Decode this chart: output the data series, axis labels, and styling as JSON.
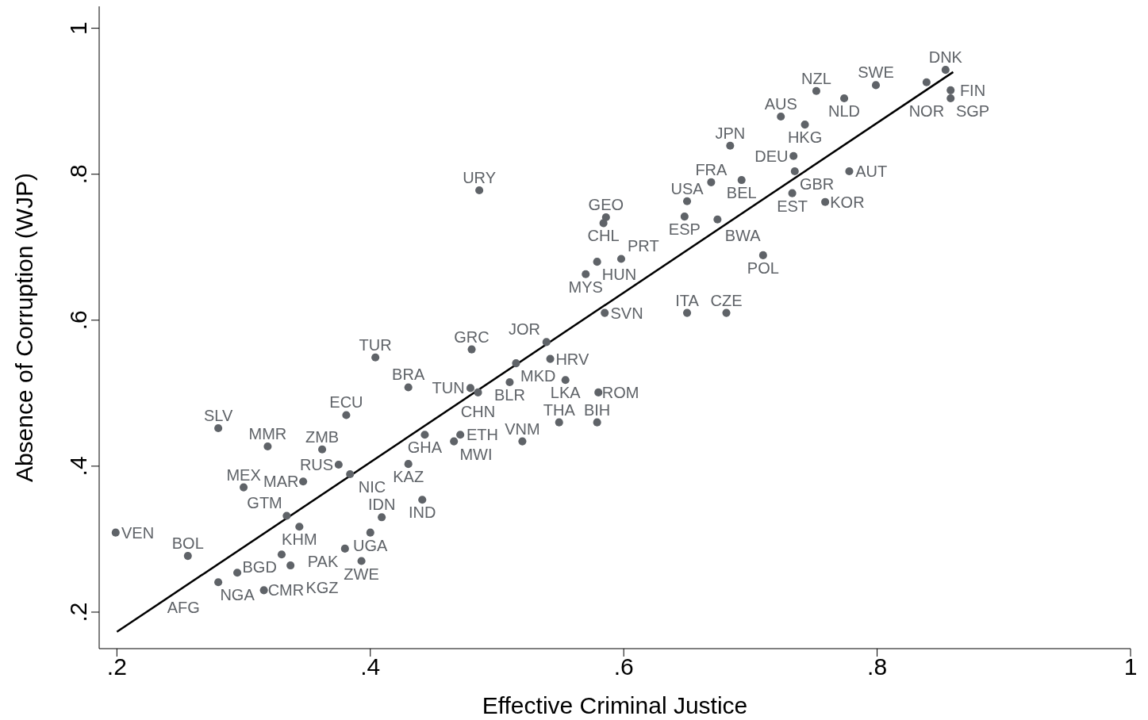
{
  "chart_data": {
    "type": "scatter",
    "xlabel": "Effective Criminal Justice",
    "ylabel": "Absence of Corruption (WJP)",
    "xlim": [
      0.186,
      1.0
    ],
    "ylim": [
      0.15,
      1.03
    ],
    "xticks": [
      {
        "value": 0.2,
        "label": ".2"
      },
      {
        "value": 0.4,
        "label": ".4"
      },
      {
        "value": 0.6,
        "label": ".6"
      },
      {
        "value": 0.8,
        "label": ".8"
      },
      1
    ],
    "yticks": [
      {
        "value": 0.2,
        "label": ".2"
      },
      {
        "value": 0.4,
        "label": ".4"
      },
      {
        "value": 0.6,
        "label": ".6"
      },
      {
        "value": 0.8,
        "label": ".8"
      },
      1
    ],
    "marker": "circle",
    "grid": false,
    "legend": false,
    "series": [
      {
        "type": "scatter",
        "color": "#5f6368",
        "x": [
          0.854,
          0.799,
          0.839,
          0.752,
          0.774,
          0.858,
          0.858,
          0.724,
          0.743,
          0.684,
          0.734,
          0.735,
          0.778,
          0.669,
          0.693,
          0.733,
          0.759,
          0.486,
          0.65,
          0.648,
          0.674,
          0.586,
          0.584,
          0.579,
          0.598,
          0.57,
          0.71,
          0.585,
          0.65,
          0.681,
          0.539,
          0.48,
          0.515,
          0.542,
          0.554,
          0.51,
          0.58,
          0.479,
          0.485,
          0.404,
          0.43,
          0.549,
          0.579,
          0.52,
          0.28,
          0.319,
          0.381,
          0.443,
          0.471,
          0.466,
          0.43,
          0.362,
          0.375,
          0.384,
          0.347,
          0.3,
          0.441,
          0.409,
          0.4,
          0.334,
          0.344,
          0.38,
          0.33,
          0.256,
          0.295,
          0.28,
          0.316,
          0.337,
          0.393,
          0.199
        ],
        "values": [
          0.943,
          0.922,
          0.926,
          0.914,
          0.904,
          0.915,
          0.904,
          0.879,
          0.868,
          0.839,
          0.825,
          0.804,
          0.804,
          0.789,
          0.792,
          0.774,
          0.762,
          0.778,
          0.763,
          0.742,
          0.738,
          0.741,
          0.733,
          0.68,
          0.684,
          0.663,
          0.689,
          0.61,
          0.61,
          0.61,
          0.57,
          0.56,
          0.541,
          0.547,
          0.518,
          0.515,
          0.501,
          0.507,
          0.501,
          0.549,
          0.508,
          0.46,
          0.46,
          0.434,
          0.452,
          0.427,
          0.47,
          0.443,
          0.443,
          0.434,
          0.403,
          0.423,
          0.402,
          0.389,
          0.379,
          0.371,
          0.354,
          0.33,
          0.309,
          0.332,
          0.317,
          0.287,
          0.279,
          0.277,
          0.254,
          0.241,
          0.23,
          0.264,
          0.27,
          0.309
        ],
        "value_labels": [
          "DNK",
          "SWE",
          "NOR",
          "NZL",
          "NLD",
          "FIN",
          "SGP",
          "AUS",
          "HKG",
          "JPN",
          "DEU",
          "GBR",
          "AUT",
          "FRA",
          "BEL",
          "EST",
          "KOR",
          "URY",
          "USA",
          "ESP",
          "BWA",
          "GEO",
          "CHL",
          "HUN",
          "PRT",
          "MYS",
          "POL",
          "SVN",
          "ITA",
          "CZE",
          "JOR",
          "GRC",
          "MKD",
          "HRV",
          "LKA",
          "BLR",
          "ROM",
          "TUN",
          "CHN",
          "TUR",
          "BRA",
          "THA",
          "BIH",
          "VNM",
          "SLV",
          "MMR",
          "ECU",
          "GHA",
          "ETH",
          "MWI",
          "KAZ",
          "ZMB",
          "RUS",
          "NIC",
          "MAR",
          "MEX",
          "IND",
          "IDN",
          "UGA",
          "GTM",
          "KHM",
          "PAK",
          "BGD",
          "BOL",
          "NGA",
          "AFG",
          "CMR",
          "KGZ",
          "ZWE",
          "VEN"
        ]
      },
      {
        "type": "line",
        "color": "#000000",
        "marker": "none",
        "x": [
          0.2,
          0.86
        ],
        "values": [
          0.173,
          0.94
        ]
      }
    ]
  }
}
